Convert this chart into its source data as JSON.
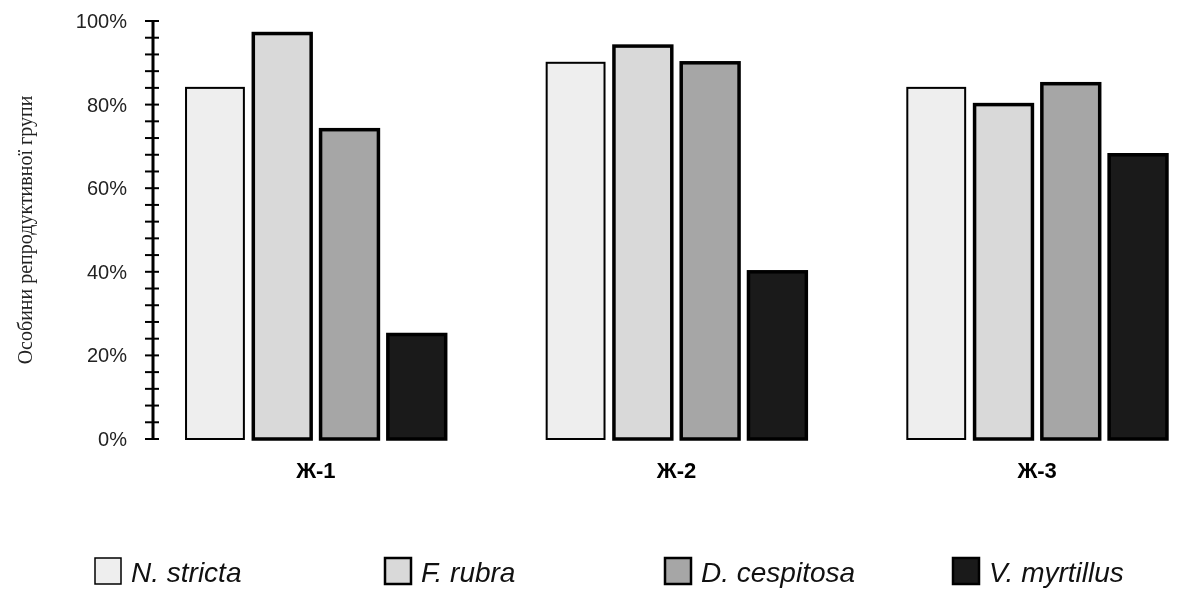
{
  "chart_data": {
    "type": "bar",
    "ylabel": "Особини репродуктивної групи",
    "categories": [
      "Ж-1",
      "Ж-2",
      "Ж-3"
    ],
    "series": [
      {
        "name": "N. stricta",
        "color": "#eeeeee",
        "values": [
          84,
          90,
          84
        ]
      },
      {
        "name": "F. rubra",
        "color": "#d9d9d9",
        "values": [
          97,
          94,
          80
        ]
      },
      {
        "name": "D. cespitosa",
        "color": "#a6a6a6",
        "values": [
          74,
          90,
          85
        ]
      },
      {
        "name": "V. myrtillus",
        "color": "#1a1a1a",
        "values": [
          25,
          40,
          68
        ]
      }
    ],
    "ylim": [
      0,
      100
    ],
    "yticks": [
      {
        "value": 0,
        "label": "0%"
      },
      {
        "value": 4,
        "label": null
      },
      {
        "value": 8,
        "label": null
      },
      {
        "value": 12,
        "label": null
      },
      {
        "value": 16,
        "label": null
      },
      {
        "value": 20,
        "label": "20%"
      },
      {
        "value": 24,
        "label": null
      },
      {
        "value": 28,
        "label": null
      },
      {
        "value": 32,
        "label": null
      },
      {
        "value": 36,
        "label": null
      },
      {
        "value": 40,
        "label": "40%"
      },
      {
        "value": 44,
        "label": null
      },
      {
        "value": 48,
        "label": null
      },
      {
        "value": 52,
        "label": null
      },
      {
        "value": 56,
        "label": null
      },
      {
        "value": 60,
        "label": "60%"
      },
      {
        "value": 64,
        "label": null
      },
      {
        "value": 68,
        "label": null
      },
      {
        "value": 72,
        "label": null
      },
      {
        "value": 76,
        "label": null
      },
      {
        "value": 80,
        "label": "80%"
      },
      {
        "value": 84,
        "label": null
      },
      {
        "value": 88,
        "label": null
      },
      {
        "value": 92,
        "label": null
      },
      {
        "value": 96,
        "label": null
      },
      {
        "value": 100,
        "label": "100%"
      }
    ],
    "grid": false,
    "legend": "bottom"
  }
}
